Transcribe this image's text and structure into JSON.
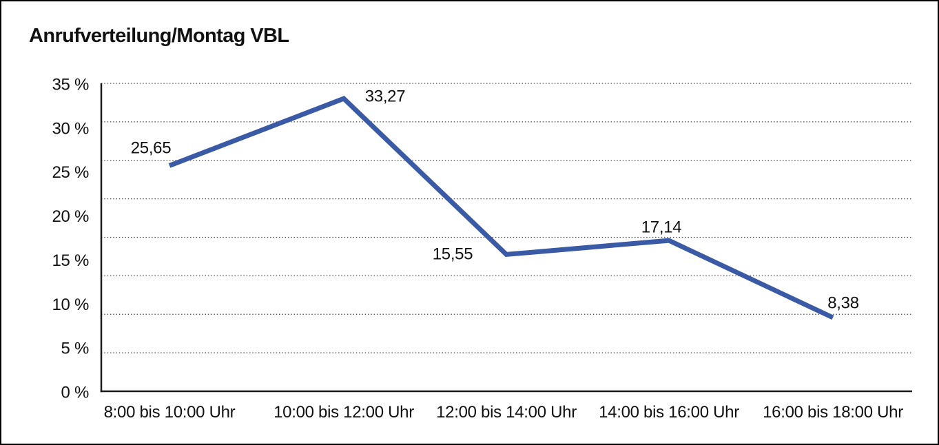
{
  "chart": {
    "title": "Anrufverteilung/Montag VBL"
  },
  "chart_data": {
    "type": "line",
    "title": "Anrufverteilung/Montag VBL",
    "categories": [
      "8:00 bis 10:00 Uhr",
      "10:00 bis 12:00 Uhr",
      "12:00 bis 14:00 Uhr",
      "14:00 bis 16:00 Uhr",
      "16:00 bis 18:00 Uhr"
    ],
    "values": [
      25.65,
      33.27,
      15.55,
      17.14,
      8.38
    ],
    "value_labels": [
      "25,65",
      "33,27",
      "15,55",
      "17,14",
      "8,38"
    ],
    "unit": "%",
    "y_tick_labels": [
      "35 %",
      "30 %",
      "25 %",
      "20 %",
      "15 %",
      "10 %",
      "5 %",
      "0 %"
    ],
    "ylim": [
      0,
      35
    ],
    "y_tick_step": 5,
    "grid": "horizontal dotted, 8 equal intervals",
    "legend": "none",
    "line_color": "#3A5AA5",
    "axis_color": "#1a1a1a",
    "grid_color": "#444444",
    "text_color": "#111111",
    "background": "#FFFFFF"
  }
}
